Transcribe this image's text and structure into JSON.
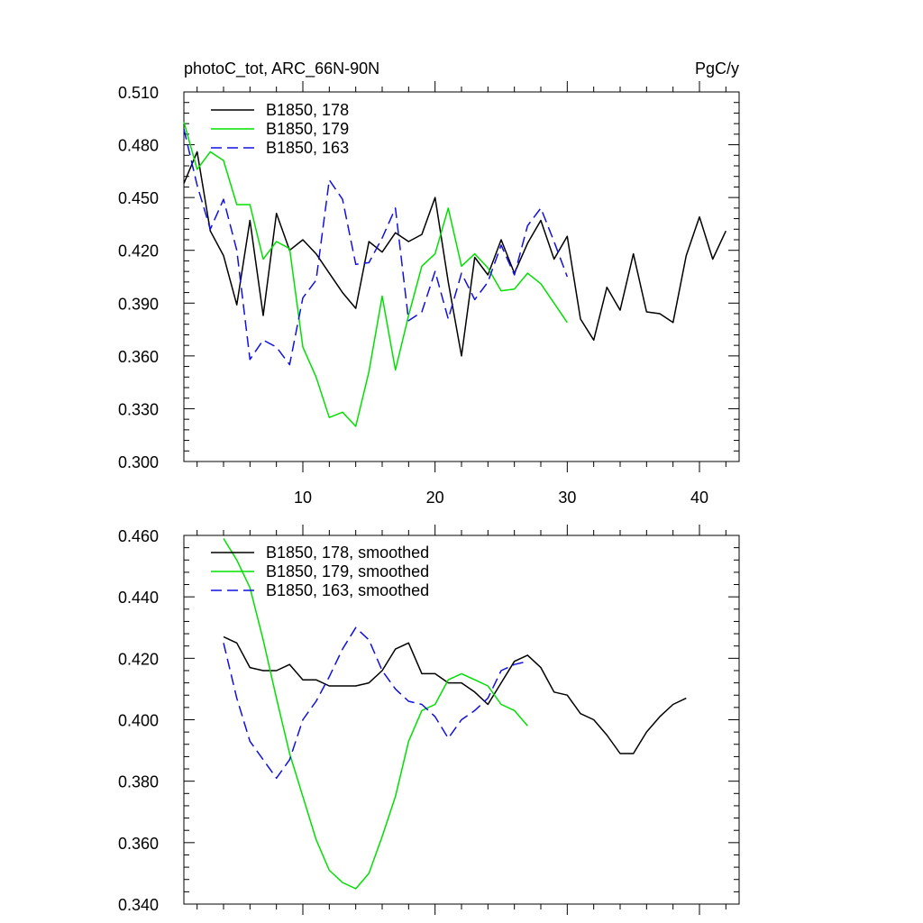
{
  "colors": {
    "series_178": "#000000",
    "series_179": "#00e000",
    "series_163": "#1010e0",
    "axis": "#000000",
    "background": "#ffffff"
  },
  "chart_data": [
    {
      "type": "line",
      "title": "photoC_tot, ARC_66N-90N",
      "units": "PgC/y",
      "xlim": [
        1,
        43
      ],
      "ylim": [
        0.3,
        0.51
      ],
      "y_ticks": [
        0.3,
        0.33,
        0.36,
        0.39,
        0.42,
        0.45,
        0.48,
        0.51
      ],
      "y_tick_labels": [
        "0.300",
        "0.330",
        "0.360",
        "0.390",
        "0.420",
        "0.450",
        "0.480",
        "0.510"
      ],
      "x_ticks": [
        10,
        20,
        30,
        40
      ],
      "x_tick_labels": [
        "10",
        "20",
        "30",
        "40"
      ],
      "grid": false,
      "legend_position": "top-left",
      "series": [
        {
          "name": "B1850, 178",
          "color": "#000000",
          "dash": "solid",
          "x": [
            1,
            2,
            3,
            4,
            5,
            6,
            7,
            8,
            9,
            10,
            11,
            12,
            13,
            14,
            15,
            16,
            17,
            18,
            19,
            20,
            21,
            22,
            23,
            24,
            25,
            26,
            27,
            28,
            29,
            30,
            31,
            32,
            33,
            34,
            35,
            36,
            37,
            38,
            39,
            40,
            41,
            42
          ],
          "y": [
            0.458,
            0.476,
            0.431,
            0.417,
            0.389,
            0.437,
            0.383,
            0.441,
            0.42,
            0.426,
            0.418,
            0.407,
            0.396,
            0.387,
            0.425,
            0.419,
            0.43,
            0.425,
            0.429,
            0.45,
            0.402,
            0.36,
            0.416,
            0.406,
            0.426,
            0.407,
            0.424,
            0.437,
            0.415,
            0.428,
            0.381,
            0.369,
            0.399,
            0.386,
            0.418,
            0.385,
            0.384,
            0.379,
            0.417,
            0.439,
            0.415,
            0.431
          ]
        },
        {
          "name": "B1850, 179",
          "color": "#00e000",
          "dash": "solid",
          "x": [
            1,
            2,
            3,
            4,
            5,
            6,
            7,
            8,
            9,
            10,
            11,
            12,
            13,
            14,
            15,
            16,
            17,
            18,
            19,
            20,
            21,
            22,
            23,
            24,
            25,
            26,
            27,
            28,
            29,
            30
          ],
          "y": [
            0.493,
            0.466,
            0.476,
            0.471,
            0.446,
            0.446,
            0.415,
            0.425,
            0.421,
            0.365,
            0.348,
            0.325,
            0.328,
            0.32,
            0.351,
            0.394,
            0.352,
            0.383,
            0.411,
            0.418,
            0.444,
            0.411,
            0.418,
            0.41,
            0.397,
            0.398,
            0.407,
            0.401,
            0.39,
            0.379
          ]
        },
        {
          "name": "B1850, 163",
          "color": "#1010e0",
          "dash": "dashed",
          "x": [
            1,
            2,
            3,
            4,
            5,
            6,
            7,
            8,
            9,
            10,
            11,
            12,
            13,
            14,
            15,
            16,
            17,
            18,
            19,
            20,
            21,
            22,
            23,
            24,
            25,
            26,
            27,
            28,
            29,
            30
          ],
          "y": [
            0.489,
            0.457,
            0.432,
            0.449,
            0.42,
            0.358,
            0.369,
            0.365,
            0.355,
            0.393,
            0.403,
            0.46,
            0.449,
            0.412,
            0.413,
            0.427,
            0.444,
            0.38,
            0.385,
            0.408,
            0.381,
            0.407,
            0.392,
            0.402,
            0.423,
            0.406,
            0.434,
            0.444,
            0.425,
            0.405
          ]
        }
      ]
    },
    {
      "type": "line",
      "xlim": [
        1,
        43
      ],
      "ylim": [
        0.34,
        0.46
      ],
      "y_ticks": [
        0.34,
        0.36,
        0.38,
        0.4,
        0.42,
        0.44,
        0.46
      ],
      "y_tick_labels": [
        "0.340",
        "0.360",
        "0.380",
        "0.400",
        "0.420",
        "0.440",
        "0.460"
      ],
      "x_ticks": [
        10,
        20,
        30,
        40
      ],
      "grid": false,
      "legend_position": "top-left",
      "series": [
        {
          "name": "B1850, 178, smoothed",
          "color": "#000000",
          "dash": "solid",
          "x": [
            4,
            5,
            6,
            7,
            8,
            9,
            10,
            11,
            12,
            13,
            14,
            15,
            16,
            17,
            18,
            19,
            20,
            21,
            22,
            23,
            24,
            25,
            26,
            27,
            28,
            29,
            30,
            31,
            32,
            33,
            34,
            35,
            36,
            37,
            38,
            39
          ],
          "y": [
            0.427,
            0.425,
            0.417,
            0.416,
            0.416,
            0.418,
            0.413,
            0.413,
            0.411,
            0.411,
            0.411,
            0.412,
            0.416,
            0.423,
            0.425,
            0.415,
            0.415,
            0.412,
            0.412,
            0.409,
            0.405,
            0.412,
            0.419,
            0.421,
            0.417,
            0.409,
            0.408,
            0.402,
            0.4,
            0.395,
            0.389,
            0.389,
            0.396,
            0.401,
            0.405,
            0.407
          ]
        },
        {
          "name": "B1850, 179, smoothed",
          "color": "#00e000",
          "dash": "solid",
          "x": [
            4,
            5,
            6,
            7,
            8,
            9,
            10,
            11,
            12,
            13,
            14,
            15,
            16,
            17,
            18,
            19,
            20,
            21,
            22,
            23,
            24,
            25,
            26,
            27
          ],
          "y": [
            0.459,
            0.452,
            0.443,
            0.426,
            0.407,
            0.389,
            0.375,
            0.361,
            0.351,
            0.347,
            0.345,
            0.35,
            0.362,
            0.375,
            0.393,
            0.403,
            0.405,
            0.413,
            0.415,
            0.413,
            0.411,
            0.405,
            0.403,
            0.398
          ]
        },
        {
          "name": "B1850, 163, smoothed",
          "color": "#1010e0",
          "dash": "dashed",
          "x": [
            4,
            5,
            6,
            7,
            8,
            9,
            10,
            11,
            12,
            13,
            14,
            15,
            16,
            17,
            18,
            19,
            20,
            21,
            22,
            23,
            24,
            25,
            26,
            27
          ],
          "y": [
            0.425,
            0.407,
            0.393,
            0.387,
            0.381,
            0.387,
            0.4,
            0.406,
            0.414,
            0.423,
            0.43,
            0.426,
            0.416,
            0.41,
            0.406,
            0.405,
            0.401,
            0.394,
            0.4,
            0.403,
            0.407,
            0.416,
            0.418,
            0.419
          ]
        }
      ]
    }
  ]
}
